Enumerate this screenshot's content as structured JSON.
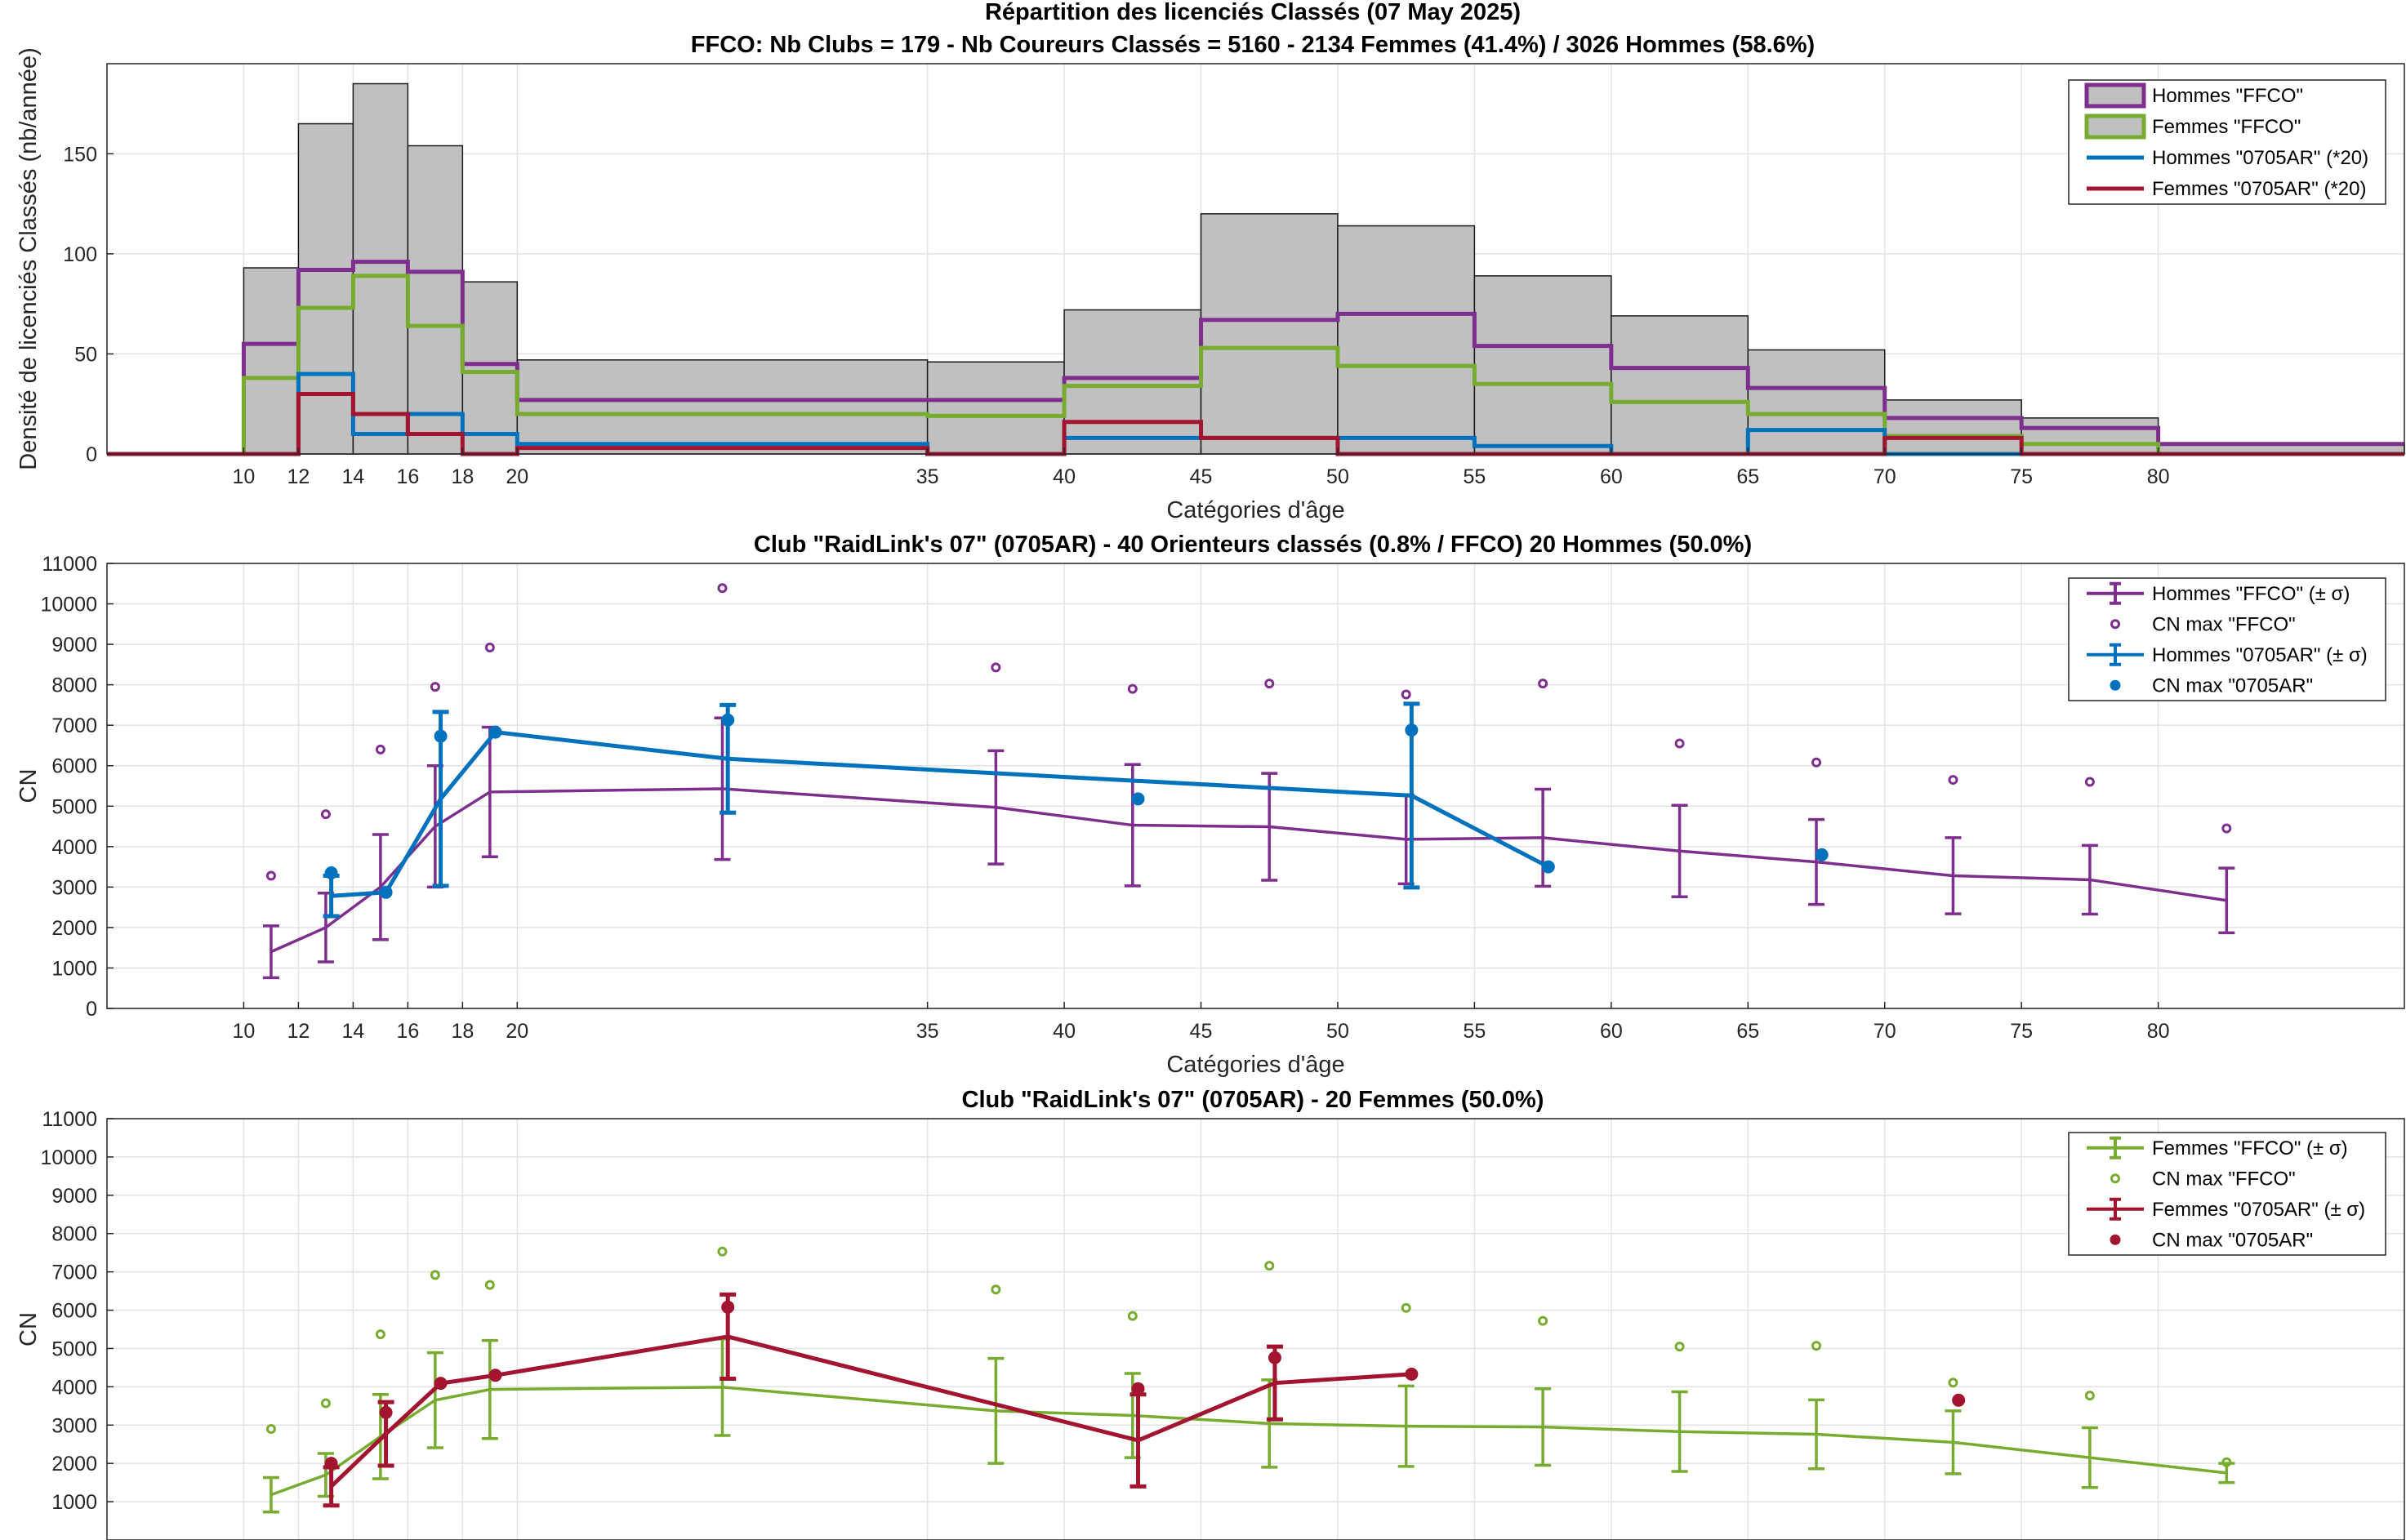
{
  "figure": {
    "title": "Répartition des licenciés Classés (07 May 2025)",
    "subtitle": "FFCO: Nb Clubs = 179   -   Nb Coureurs Classés = 5160   -   2134 Femmes (41.4%) / 3026 Hommes (58.6%)"
  },
  "colors": {
    "hommes_ffco": "#7E2F8E",
    "femmes_ffco": "#77AC30",
    "hommes_club": "#0072BD",
    "femmes_club": "#A2142F",
    "bar_fill": "#C0C0C0",
    "grid": "#E6E6E6"
  },
  "chart_data": [
    {
      "type": "bar",
      "title": "",
      "xlabel": "Catégories d'âge",
      "ylabel": "Densité de licenciés Classés (nb/année)",
      "xlim": [
        5,
        89
      ],
      "ylim": [
        0,
        195
      ],
      "xticks": [
        10,
        12,
        14,
        16,
        18,
        20,
        35,
        40,
        45,
        50,
        55,
        60,
        65,
        70,
        75,
        80
      ],
      "yticks": [
        0,
        50,
        100,
        150
      ],
      "grid": true,
      "legend_position": "top-right",
      "bin_edges": [
        5,
        10,
        12,
        14,
        16,
        18,
        20,
        35,
        40,
        45,
        50,
        55,
        60,
        65,
        70,
        75,
        80,
        89
      ],
      "bars": [
        0,
        93,
        165,
        185,
        154,
        86,
        47,
        46,
        72,
        120,
        114,
        89,
        69,
        52,
        27,
        18,
        5
      ],
      "series": [
        {
          "name": "Hommes \"FFCO\"",
          "color": "#7E2F8E",
          "values": [
            0,
            55,
            92,
            96,
            91,
            45,
            27,
            27,
            38,
            67,
            70,
            54,
            43,
            33,
            18,
            13,
            5
          ]
        },
        {
          "name": "Femmes \"FFCO\"",
          "color": "#77AC30",
          "values": [
            0,
            38,
            73,
            89,
            64,
            41,
            20,
            19,
            34,
            53,
            44,
            35,
            26,
            20,
            9,
            5,
            0
          ]
        },
        {
          "name": "Hommes \"0705AR\" (*20)",
          "color": "#0072BD",
          "values": [
            0,
            0,
            40,
            10,
            20,
            10,
            5,
            0,
            8,
            8,
            8,
            4,
            0,
            12,
            0,
            0,
            0
          ]
        },
        {
          "name": "Femmes \"0705AR\" (*20)",
          "color": "#A2142F",
          "values": [
            0,
            0,
            30,
            20,
            10,
            0,
            3,
            0,
            16,
            8,
            0,
            0,
            0,
            0,
            8,
            0,
            0
          ]
        }
      ]
    },
    {
      "type": "line",
      "title": "Club \"RaidLink's 07\" (0705AR)  -  40 Orienteurs classés (0.8% / FFCO)  20 Hommes (50.0%)",
      "xlabel": "Catégories d'âge",
      "ylabel": "CN",
      "xlim": [
        5,
        89
      ],
      "ylim": [
        0,
        11000
      ],
      "xticks": [
        10,
        12,
        14,
        16,
        18,
        20,
        35,
        40,
        45,
        50,
        55,
        60,
        65,
        70,
        75,
        80
      ],
      "yticks": [
        0,
        1000,
        2000,
        3000,
        4000,
        5000,
        6000,
        7000,
        8000,
        9000,
        10000,
        11000
      ],
      "grid": true,
      "legend_position": "top-right",
      "series": [
        {
          "name": "Hommes \"FFCO\" (± σ)",
          "color": "#7E2F8E",
          "x": [
            11,
            13,
            15,
            17,
            19,
            27.5,
            37.5,
            42.5,
            47.5,
            52.5,
            57.5,
            62.5,
            67.5,
            72.5,
            77.5,
            82.5
          ],
          "y": [
            1400,
            2000,
            3000,
            4500,
            5350,
            5430,
            4970,
            4530,
            4490,
            4180,
            4220,
            3890,
            3620,
            3280,
            3180,
            2670
          ],
          "err": [
            640,
            850,
            1300,
            1500,
            1600,
            1750,
            1400,
            1500,
            1320,
            1100,
            1200,
            1130,
            1050,
            940,
            850,
            800
          ]
        },
        {
          "name": "CN max \"FFCO\"",
          "color": "#7E2F8E",
          "marker": "circle-small",
          "x": [
            11,
            13,
            15,
            17,
            19,
            27.5,
            37.5,
            42.5,
            47.5,
            52.5,
            57.5,
            62.5,
            67.5,
            72.5,
            77.5,
            82.5
          ],
          "y": [
            3280,
            4800,
            6400,
            7950,
            8920,
            10390,
            8430,
            7900,
            8030,
            7760,
            8030,
            6550,
            6080,
            5650,
            5600,
            4450
          ]
        },
        {
          "name": "Hommes \"0705AR\" (± σ)",
          "color": "#0072BD",
          "x": [
            13.2,
            15.2,
            17.2,
            19.2,
            27.7,
            52.7,
            57.7
          ],
          "y": [
            2780,
            2870,
            5180,
            6830,
            6170,
            5260,
            3500
          ],
          "err": [
            500,
            0,
            2150,
            0,
            1330,
            2270,
            0
          ]
        },
        {
          "name": "CN max \"0705AR\"",
          "color": "#0072BD",
          "marker": "circle",
          "x": [
            13.2,
            15.2,
            17.2,
            19.2,
            27.7,
            42.7,
            52.7,
            57.7,
            67.7
          ],
          "y": [
            3350,
            2870,
            6730,
            6830,
            7130,
            5180,
            6880,
            3500,
            3800
          ]
        }
      ]
    },
    {
      "type": "line",
      "title": "Club \"RaidLink's 07\" (0705AR)  -  20 Femmes (50.0%)",
      "xlabel": "",
      "ylabel": "CN",
      "xlim": [
        5,
        89
      ],
      "ylim": [
        0,
        11000
      ],
      "yticks": [
        1000,
        2000,
        3000,
        4000,
        5000,
        6000,
        7000,
        8000,
        9000,
        10000,
        11000
      ],
      "grid": true,
      "legend_position": "top-right",
      "series": [
        {
          "name": "Femmes \"FFCO\" (± σ)",
          "color": "#77AC30",
          "x": [
            11,
            13,
            15,
            17,
            19,
            27.5,
            37.5,
            42.5,
            47.5,
            52.5,
            57.5,
            62.5,
            67.5,
            72.5,
            77.5,
            82.5
          ],
          "y": [
            1180,
            1700,
            2700,
            3650,
            3930,
            3990,
            3370,
            3250,
            3040,
            2970,
            2950,
            2830,
            2760,
            2550,
            2150,
            1750
          ],
          "err": [
            450,
            560,
            1100,
            1240,
            1280,
            1260,
            1370,
            1100,
            1140,
            1050,
            1000,
            1040,
            900,
            820,
            780,
            250
          ]
        },
        {
          "name": "CN max \"FFCO\"",
          "color": "#77AC30",
          "marker": "circle-small",
          "x": [
            11,
            13,
            15,
            17,
            19,
            27.5,
            37.5,
            42.5,
            47.5,
            52.5,
            57.5,
            62.5,
            67.5,
            72.5,
            77.5,
            82.5
          ],
          "y": [
            2900,
            3570,
            5370,
            6920,
            6660,
            7530,
            6540,
            5850,
            7160,
            6060,
            5720,
            5050,
            5070,
            4110,
            3770,
            2030
          ]
        },
        {
          "name": "Femmes \"0705AR\" (± σ)",
          "color": "#A2142F",
          "x": [
            13.2,
            15.2,
            17.2,
            19.2,
            27.7,
            42.7,
            47.7,
            52.7
          ],
          "y": [
            1400,
            2770,
            4090,
            4300,
            5310,
            2600,
            4100,
            4330
          ],
          "err": [
            500,
            830,
            0,
            0,
            1100,
            1200,
            950,
            0
          ]
        },
        {
          "name": "CN max \"0705AR\"",
          "color": "#A2142F",
          "marker": "circle",
          "x": [
            13.2,
            15.2,
            17.2,
            19.2,
            27.7,
            42.7,
            47.7,
            52.7,
            72.7
          ],
          "y": [
            2000,
            3330,
            4090,
            4300,
            6080,
            3950,
            4760,
            4330,
            3650
          ]
        }
      ]
    }
  ]
}
